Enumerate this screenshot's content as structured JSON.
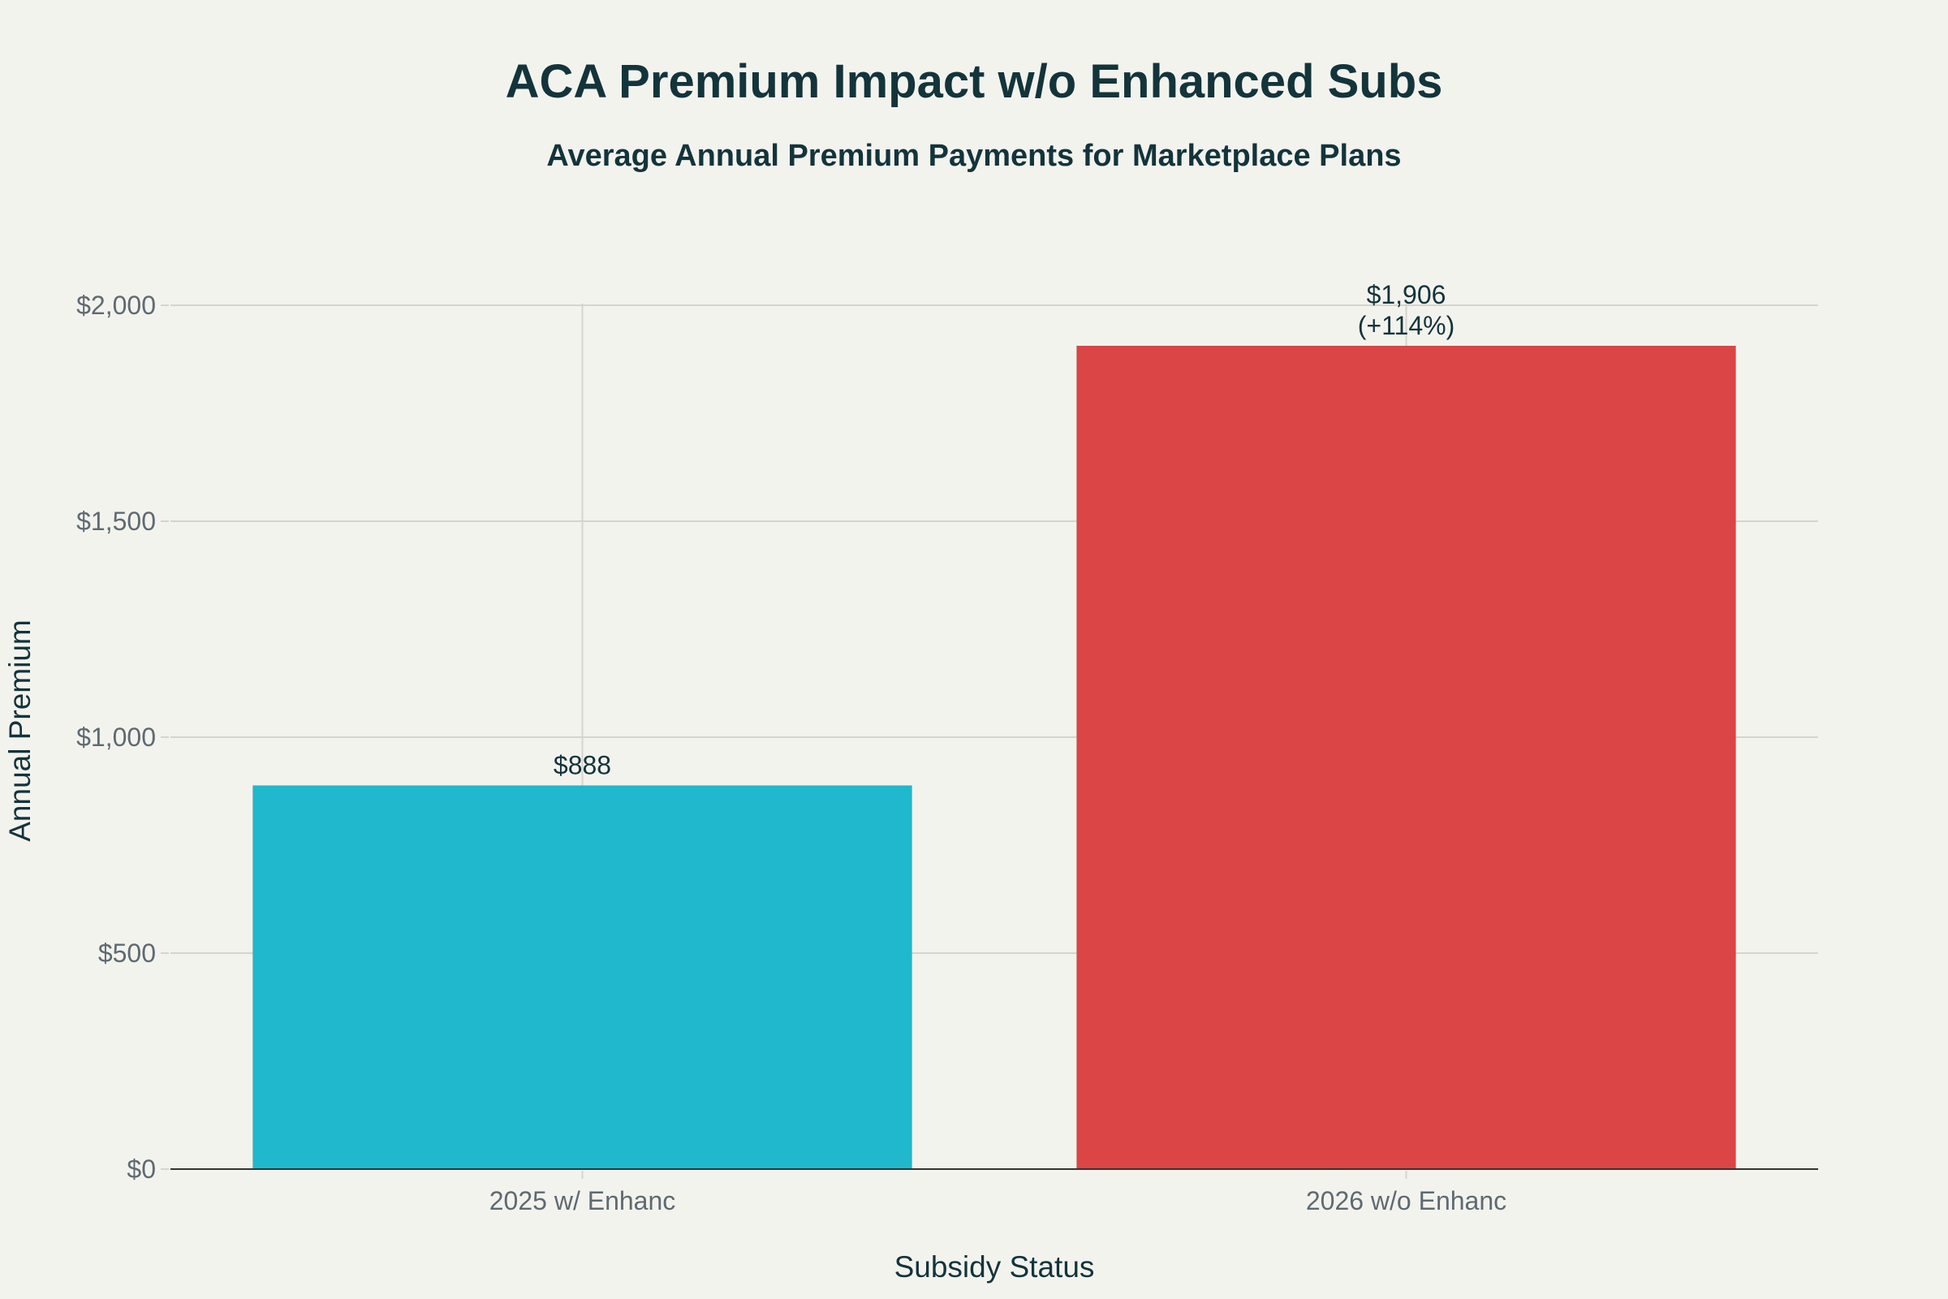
{
  "chart_data": {
    "type": "bar",
    "title": "ACA Premium Impact w/o Enhanced Subs",
    "subtitle": "Average Annual Premium Payments for Marketplace Plans",
    "xlabel": "Subsidy Status",
    "ylabel": "Annual Premium",
    "categories": [
      "2025 w/ Enhanc",
      "2026 w/o Enhanc"
    ],
    "values": [
      888,
      1906
    ],
    "data_labels": [
      [
        "$888"
      ],
      [
        "$1,906",
        "(+114%)"
      ]
    ],
    "colors": [
      "#1FB8CD",
      "#DB4545"
    ],
    "ylim": [
      0,
      2000
    ],
    "yticks": [
      0,
      500,
      1000,
      1500,
      2000
    ],
    "ytick_labels": [
      "$0",
      "$500",
      "$1,000",
      "$1,500",
      "$2,000"
    ],
    "grid": true,
    "legend": "none"
  }
}
